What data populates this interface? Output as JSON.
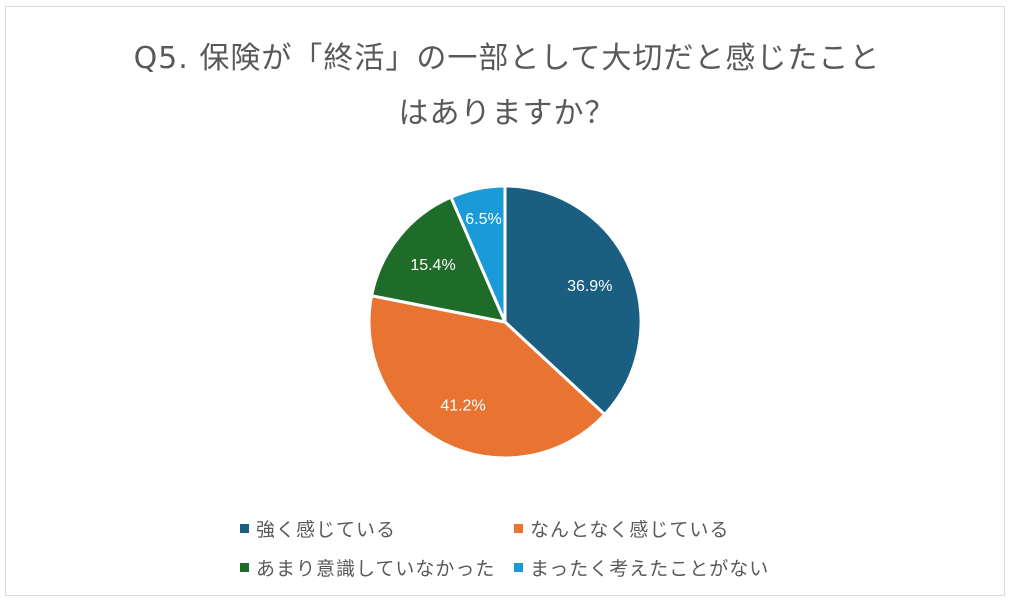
{
  "title": {
    "line1": "Q5. 保険が「終活」の一部として大切だと感じたこと",
    "line2": "はありますか？"
  },
  "legend": [
    {
      "label": "強く感じている",
      "color": "#1a5f82"
    },
    {
      "label": "なんとなく感じている",
      "color": "#e97432"
    },
    {
      "label": "あまり意識していなかった",
      "color": "#1e6b2a"
    },
    {
      "label": "まったく考えたことがない",
      "color": "#1a9bd7"
    }
  ],
  "labels": [
    "36.9%",
    "41.2%",
    "15.4%",
    "6.5%"
  ],
  "chart_data": {
    "type": "pie",
    "title": "Q5. 保険が「終活」の一部として大切だと感じたことはありますか？",
    "categories": [
      "強く感じている",
      "なんとなく感じている",
      "あまり意識していなかった",
      "まったく考えたことがない"
    ],
    "values": [
      36.9,
      41.2,
      15.4,
      6.5
    ],
    "colors": [
      "#1a5f82",
      "#e97432",
      "#1e6b2a",
      "#1a9bd7"
    ],
    "data_labels": [
      "36.9%",
      "41.2%",
      "15.4%",
      "6.5%"
    ],
    "legend_position": "bottom",
    "start_angle": "12 o'clock, clockwise"
  }
}
